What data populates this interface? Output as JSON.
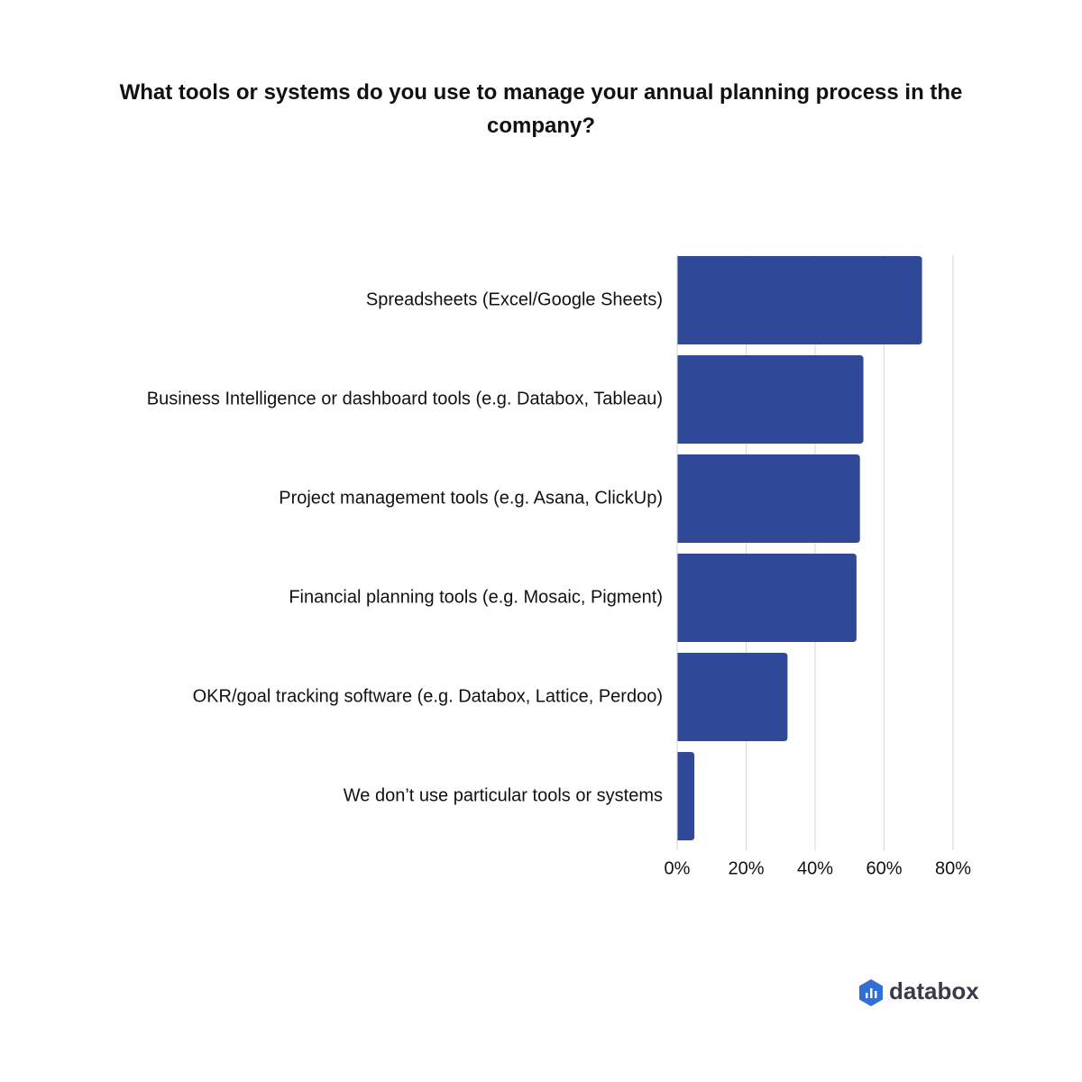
{
  "chart_data": {
    "type": "hbar",
    "title": "What tools or systems do you use to manage your annual planning process in the company?",
    "categories": [
      "Spreadsheets (Excel/Google Sheets)",
      "Business Intelligence or dashboard tools (e.g. Databox, Tableau)",
      "Project management tools (e.g. Asana, ClickUp)",
      "Financial planning tools (e.g. Mosaic, Pigment)",
      "OKR/goal tracking software (e.g. Databox, Lattice, Perdoo)",
      "We don’t use particular tools or systems"
    ],
    "values": [
      71,
      54,
      53,
      52,
      32,
      5
    ],
    "color": "#2f4898",
    "xlim": [
      0,
      80
    ],
    "xticks": [
      {
        "value": 0,
        "label": "0%"
      },
      {
        "value": 20,
        "label": "20%"
      },
      {
        "value": 40,
        "label": "40%"
      },
      {
        "value": 60,
        "label": "60%"
      },
      {
        "value": 80,
        "label": "80%"
      }
    ],
    "grid": true
  },
  "brand": "databox"
}
